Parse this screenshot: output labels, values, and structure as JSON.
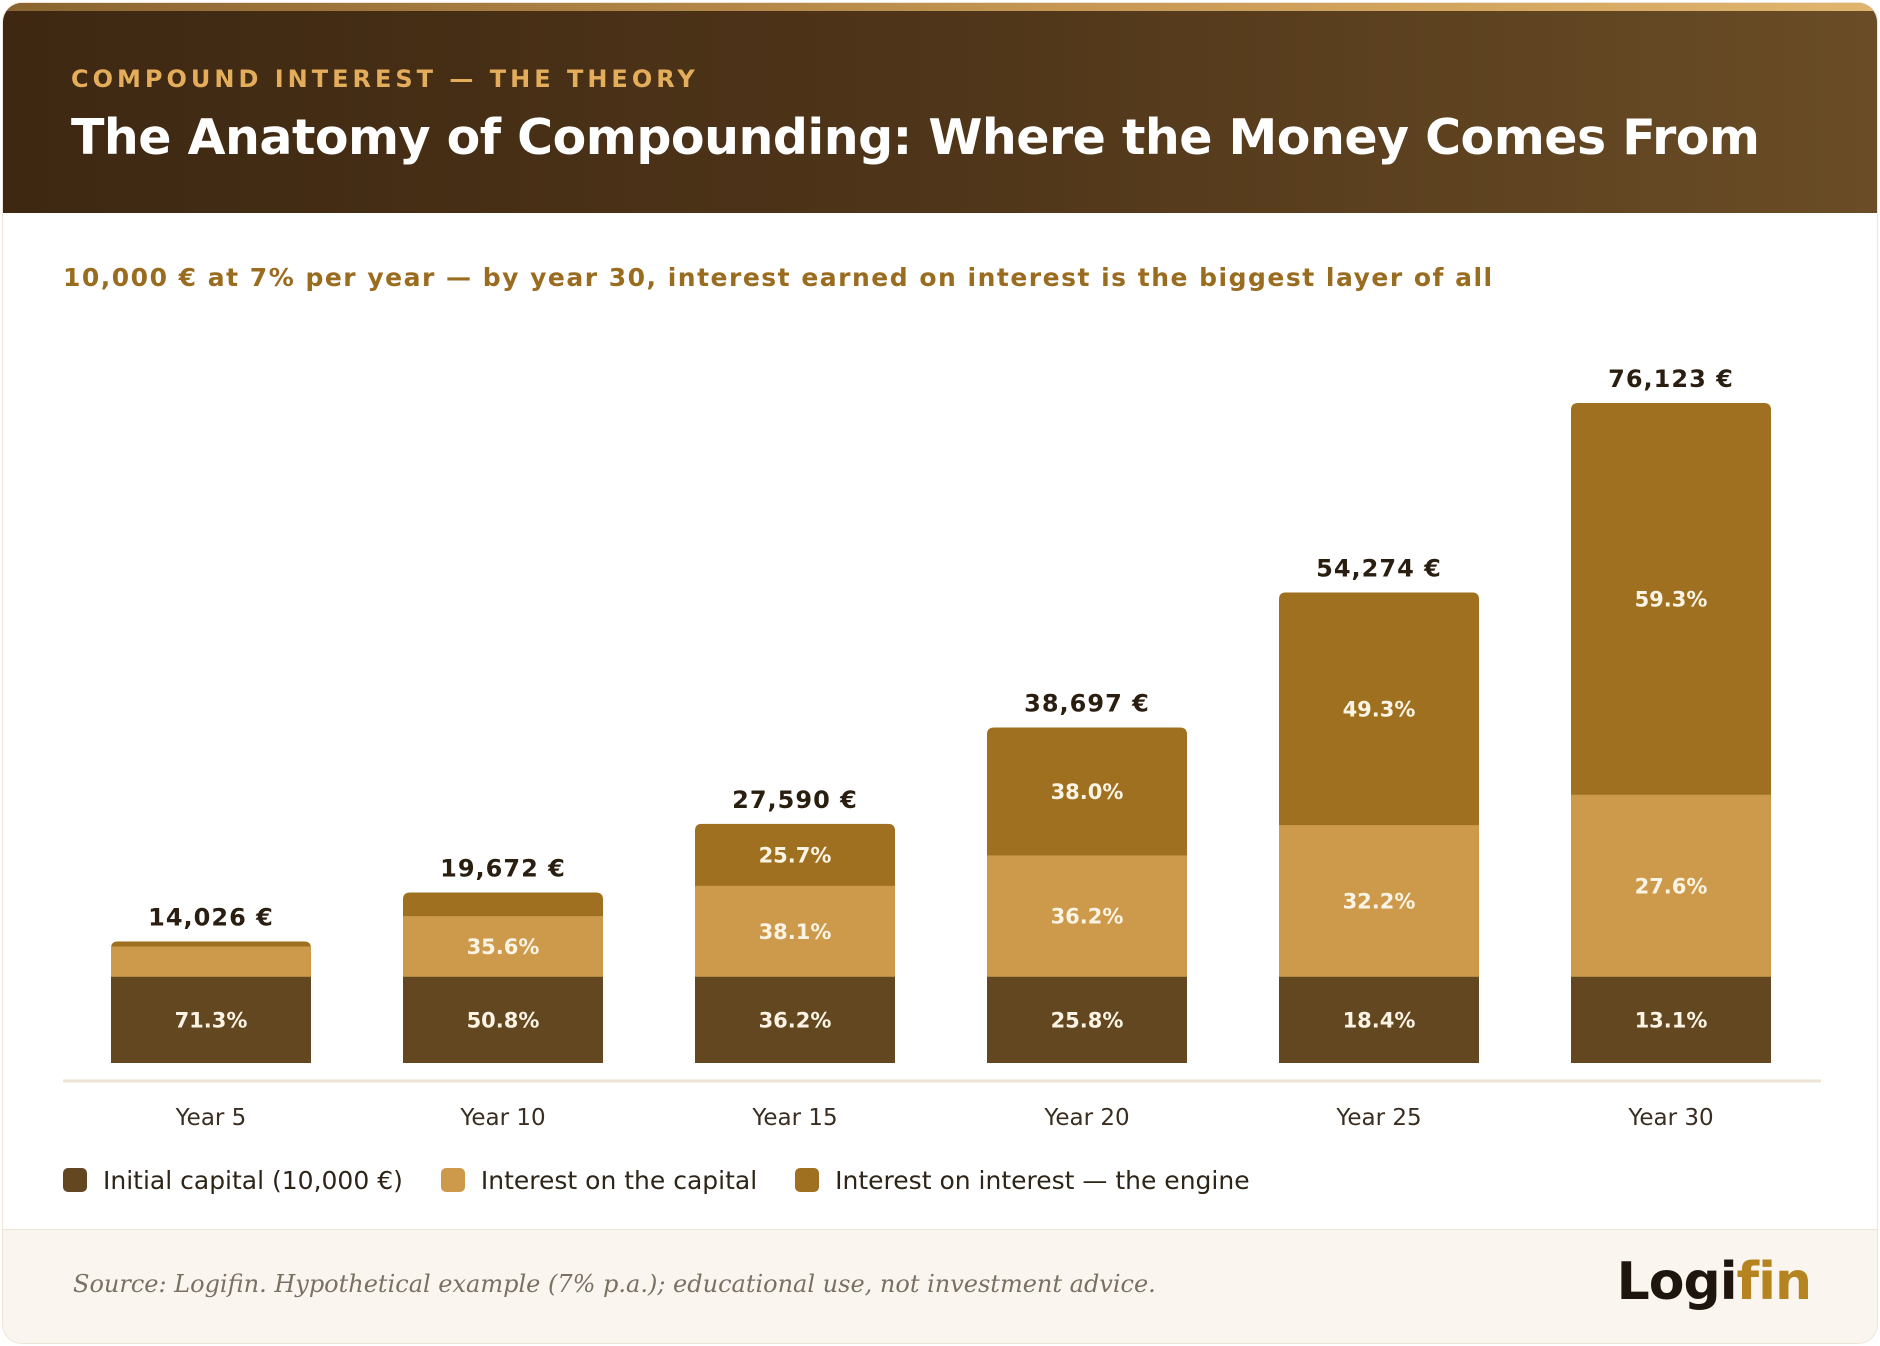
{
  "header": {
    "eyebrow": "COMPOUND INTEREST — THE THEORY",
    "title": "The Anatomy of Compounding: Where the Money Comes From"
  },
  "subtitle": "10,000 € at 7% per year — by year 30, interest earned on interest is the biggest layer of all",
  "colors": {
    "initial_capital": "#634720",
    "interest_on_capital": "#cc9a4a",
    "interest_on_interest": "#9e7020",
    "total_label": "#2a1e10",
    "axis_label": "#3a2e22",
    "header_dark": "#3e2812",
    "eyebrow": "#e3ad5c",
    "subtitle": "#9a6c1f"
  },
  "chart_data": {
    "type": "bar",
    "stacked": true,
    "categories": [
      "Year 5",
      "Year 10",
      "Year 15",
      "Year 20",
      "Year 25",
      "Year 30"
    ],
    "totals": [
      14026,
      19672,
      27590,
      38697,
      54274,
      76123
    ],
    "total_labels": [
      "14,026 €",
      "19,672 €",
      "27,590 €",
      "38,697 €",
      "54,274 €",
      "76,123 €"
    ],
    "series": [
      {
        "name": "Initial capital (10,000 €)",
        "key": "initial_capital",
        "values": [
          10000,
          10000,
          10000,
          10000,
          10000,
          10000
        ],
        "share_labels": [
          "71.3%",
          "50.8%",
          "36.2%",
          "25.8%",
          "18.4%",
          "13.1%"
        ]
      },
      {
        "name": "Interest on the capital",
        "key": "interest_on_capital",
        "values": [
          3500,
          7000,
          10500,
          14000,
          17500,
          21000
        ],
        "share_labels": [
          "",
          "35.6%",
          "38.1%",
          "36.2%",
          "32.2%",
          "27.6%"
        ]
      },
      {
        "name": "Interest on interest — the engine",
        "key": "interest_on_interest",
        "values": [
          526,
          2672,
          7090,
          14697,
          26774,
          45123
        ],
        "share_labels": [
          "",
          "",
          "25.7%",
          "38.0%",
          "49.3%",
          "59.3%"
        ]
      }
    ],
    "ylim": [
      0,
      76123
    ],
    "grid": false,
    "legend_position": "bottom-left"
  },
  "footer": {
    "source": "Source: Logifin. Hypothetical example (7% p.a.); educational use, not investment advice.",
    "logo_main": "Logi",
    "logo_accent": "fin"
  }
}
